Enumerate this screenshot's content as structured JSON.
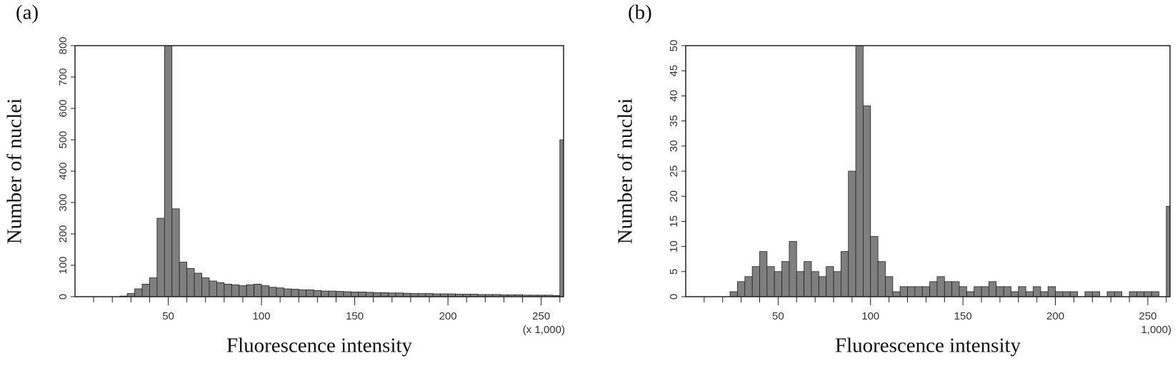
{
  "chart_data": [
    {
      "type": "histogram",
      "panel_label": "(a)",
      "ylabel": "Number of nuclei",
      "xlabel": "Fluorescence intensity",
      "x_unit_note": "(x 1,000)",
      "color": "#7f7f7f",
      "bins": [
        0,
        4,
        8,
        12,
        16,
        20,
        24,
        28,
        32,
        36,
        40,
        44,
        48,
        52,
        56,
        60,
        64,
        68,
        72,
        76,
        80,
        84,
        88,
        92,
        96,
        100,
        104,
        108,
        112,
        116,
        120,
        124,
        128,
        132,
        136,
        140,
        144,
        148,
        152,
        156,
        160,
        164,
        168,
        172,
        176,
        180,
        184,
        188,
        192,
        196,
        200,
        204,
        208,
        212,
        216,
        220,
        224,
        228,
        232,
        236,
        240,
        244,
        248,
        252,
        256,
        260,
        262
      ],
      "values": [
        0,
        0,
        0,
        0,
        0,
        0,
        2,
        10,
        25,
        40,
        60,
        250,
        800,
        280,
        110,
        90,
        75,
        60,
        50,
        45,
        40,
        38,
        35,
        38,
        40,
        35,
        30,
        28,
        25,
        24,
        22,
        22,
        20,
        18,
        18,
        17,
        16,
        15,
        15,
        14,
        13,
        13,
        12,
        12,
        11,
        10,
        10,
        10,
        9,
        9,
        9,
        8,
        8,
        8,
        7,
        7,
        7,
        6,
        6,
        6,
        5,
        5,
        5,
        5,
        4,
        500
      ],
      "xlim": [
        0,
        262
      ],
      "xticks": [
        50,
        100,
        150,
        200,
        250
      ],
      "xminorticks": [
        10,
        20,
        30,
        40,
        60,
        70,
        80,
        90,
        110,
        120,
        130,
        140,
        160,
        170,
        180,
        190,
        210,
        220,
        230,
        240,
        260
      ],
      "ylim": [
        0,
        800
      ],
      "yticks": [
        0,
        100,
        200,
        300,
        400,
        500,
        600,
        700,
        800
      ]
    },
    {
      "type": "histogram",
      "panel_label": "(b)",
      "ylabel": "Number of nuclei",
      "xlabel": "Fluorescence intensity",
      "x_unit_note": "1,000)",
      "color": "#7f7f7f",
      "bins": [
        0,
        4,
        8,
        12,
        16,
        20,
        24,
        28,
        32,
        36,
        40,
        44,
        48,
        52,
        56,
        60,
        64,
        68,
        72,
        76,
        80,
        84,
        88,
        92,
        96,
        100,
        104,
        108,
        112,
        116,
        120,
        124,
        128,
        132,
        136,
        140,
        144,
        148,
        152,
        156,
        160,
        164,
        168,
        172,
        176,
        180,
        184,
        188,
        192,
        196,
        200,
        204,
        208,
        212,
        216,
        220,
        224,
        228,
        232,
        236,
        240,
        244,
        248,
        252,
        256,
        260,
        262
      ],
      "values": [
        0,
        0,
        0,
        0,
        0,
        0,
        1,
        3,
        4,
        6,
        9,
        6,
        5,
        7,
        11,
        5,
        7,
        5,
        4,
        6,
        5,
        9,
        25,
        50,
        38,
        12,
        7,
        4,
        1,
        2,
        2,
        2,
        2,
        3,
        4,
        3,
        3,
        2,
        1,
        2,
        2,
        3,
        2,
        2,
        1,
        2,
        1,
        2,
        1,
        2,
        1,
        1,
        1,
        0,
        1,
        1,
        0,
        1,
        1,
        0,
        1,
        1,
        1,
        1,
        0,
        18
      ],
      "xlim": [
        0,
        262
      ],
      "xticks": [
        50,
        100,
        150,
        200,
        250
      ],
      "xminorticks": [
        10,
        20,
        30,
        40,
        60,
        70,
        80,
        90,
        110,
        120,
        130,
        140,
        160,
        170,
        180,
        190,
        210,
        220,
        230,
        240,
        260
      ],
      "ylim": [
        0,
        50
      ],
      "yticks": [
        0,
        5,
        10,
        15,
        20,
        25,
        30,
        35,
        40,
        45,
        50
      ]
    }
  ]
}
